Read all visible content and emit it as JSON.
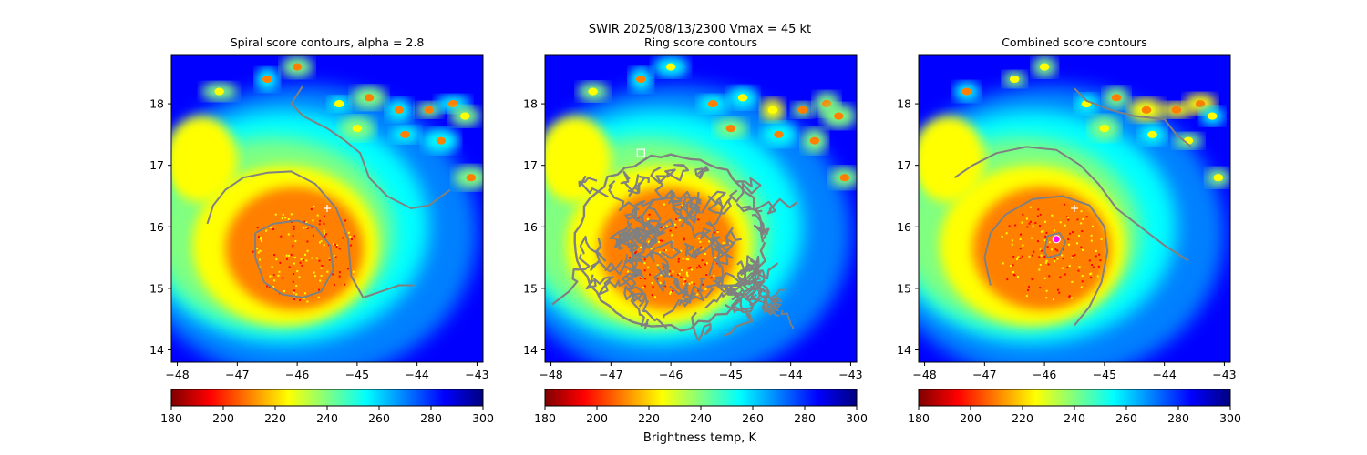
{
  "figure": {
    "suptitle_line1": "SWIR  2025/08/13/2300    Vmax = 45 kt",
    "colorbar_label": "Brightness temp, K"
  },
  "colormap": [
    "#800000",
    "#ff0000",
    "#ff8000",
    "#ffff00",
    "#80ff80",
    "#00ffff",
    "#0080ff",
    "#0000ff",
    "#000080"
  ],
  "chart_data": [
    {
      "type": "heatmap",
      "title": "Spiral score contours, alpha =  2.8",
      "xlim": [
        -48.1,
        -42.9
      ],
      "ylim": [
        13.8,
        18.8
      ],
      "xticks": [
        -48,
        -47,
        -46,
        -45,
        -44,
        -43
      ],
      "xtick_labels": [
        "−48",
        "−47",
        "−46",
        "−45",
        "−44",
        "−43"
      ],
      "yticks": [
        14,
        15,
        16,
        17,
        18
      ],
      "ytick_labels": [
        "14",
        "15",
        "16",
        "17",
        "18"
      ],
      "colorbar": {
        "range": [
          180,
          300
        ],
        "ticks": [
          180,
          200,
          220,
          240,
          260,
          280,
          300
        ],
        "tick_labels": [
          "180",
          "200",
          "220",
          "240",
          "260",
          "280",
          "300"
        ]
      },
      "storm_center": [
        -45.9,
        15.6
      ],
      "markers": [
        {
          "shape": "plus",
          "x": -45.5,
          "y": 16.3,
          "color": "#ffffff"
        }
      ],
      "contours": [
        {
          "points": [
            [
              -46.7,
              15.9
            ],
            [
              -46.4,
              16.05
            ],
            [
              -46.0,
              16.1
            ],
            [
              -45.7,
              16.0
            ],
            [
              -45.45,
              15.7
            ],
            [
              -45.4,
              15.3
            ],
            [
              -45.6,
              14.95
            ],
            [
              -45.9,
              14.85
            ],
            [
              -46.25,
              14.9
            ],
            [
              -46.55,
              15.1
            ],
            [
              -46.7,
              15.5
            ],
            [
              -46.7,
              15.9
            ]
          ]
        },
        {
          "points": [
            [
              -47.5,
              16.05
            ],
            [
              -47.4,
              16.35
            ],
            [
              -47.2,
              16.6
            ],
            [
              -46.9,
              16.8
            ],
            [
              -46.5,
              16.88
            ],
            [
              -46.1,
              16.9
            ],
            [
              -45.7,
              16.7
            ],
            [
              -45.35,
              16.3
            ],
            [
              -45.15,
              15.8
            ],
            [
              -45.1,
              15.2
            ],
            [
              -44.9,
              14.85
            ],
            [
              -44.6,
              14.95
            ],
            [
              -44.3,
              15.05
            ],
            [
              -44.05,
              15.05
            ]
          ]
        },
        {
          "points": [
            [
              -45.9,
              18.3
            ],
            [
              -46.1,
              18.0
            ],
            [
              -45.9,
              17.8
            ],
            [
              -45.5,
              17.6
            ],
            [
              -45.2,
              17.4
            ],
            [
              -44.95,
              17.2
            ],
            [
              -44.8,
              16.8
            ],
            [
              -44.5,
              16.5
            ],
            [
              -44.1,
              16.3
            ],
            [
              -43.8,
              16.35
            ],
            [
              -43.45,
              16.6
            ]
          ]
        }
      ]
    },
    {
      "type": "heatmap",
      "title": "Ring score contours",
      "xlim": [
        -48.1,
        -42.9
      ],
      "ylim": [
        13.8,
        18.8
      ],
      "xticks": [
        -48,
        -47,
        -46,
        -45,
        -44,
        -43
      ],
      "xtick_labels": [
        "−48",
        "−47",
        "−46",
        "−45",
        "−44",
        "−43"
      ],
      "yticks": [
        14,
        15,
        16,
        17,
        18
      ],
      "ytick_labels": [
        "14",
        "15",
        "16",
        "17",
        "18"
      ],
      "colorbar": {
        "range": [
          180,
          300
        ],
        "ticks": [
          180,
          200,
          220,
          240,
          260,
          280,
          300
        ],
        "tick_labels": [
          "180",
          "200",
          "220",
          "240",
          "260",
          "280",
          "300"
        ]
      },
      "storm_center": [
        -45.9,
        15.6
      ],
      "markers": [
        {
          "shape": "square",
          "x": -46.5,
          "y": 17.2,
          "color": "#ffffff"
        }
      ],
      "dense_contour_field": {
        "center": [
          -46.0,
          15.75
        ],
        "radius_x": 1.55,
        "radius_y": 1.4,
        "color": "#808080",
        "extra_lobe": [
          [
            -45.0,
            15.0
          ],
          [
            -44.0,
            14.7
          ]
        ]
      },
      "contours": []
    },
    {
      "type": "heatmap",
      "title": "Combined score contours",
      "xlim": [
        -48.1,
        -42.9
      ],
      "ylim": [
        13.8,
        18.8
      ],
      "xticks": [
        -48,
        -47,
        -46,
        -45,
        -44,
        -43
      ],
      "xtick_labels": [
        "−48",
        "−47",
        "−46",
        "−45",
        "−44",
        "−43"
      ],
      "yticks": [
        14,
        15,
        16,
        17,
        18
      ],
      "ytick_labels": [
        "14",
        "15",
        "16",
        "17",
        "18"
      ],
      "colorbar": {
        "range": [
          180,
          300
        ],
        "ticks": [
          180,
          200,
          220,
          240,
          260,
          280,
          300
        ],
        "tick_labels": [
          "180",
          "200",
          "220",
          "240",
          "260",
          "280",
          "300"
        ]
      },
      "storm_center": [
        -45.9,
        15.6
      ],
      "markers": [
        {
          "shape": "plus",
          "x": -45.5,
          "y": 16.3,
          "color": "#ffffff"
        },
        {
          "shape": "circle",
          "x": -45.8,
          "y": 15.8,
          "color": "#ff00ff"
        }
      ],
      "contours": [
        {
          "points": [
            [
              -46.0,
              15.6
            ],
            [
              -45.95,
              15.85
            ],
            [
              -45.75,
              15.9
            ],
            [
              -45.65,
              15.75
            ],
            [
              -45.75,
              15.55
            ],
            [
              -45.95,
              15.5
            ],
            [
              -46.0,
              15.6
            ]
          ]
        },
        {
          "points": [
            [
              -46.9,
              15.05
            ],
            [
              -47.0,
              15.5
            ],
            [
              -46.9,
              15.9
            ],
            [
              -46.65,
              16.2
            ],
            [
              -46.2,
              16.45
            ],
            [
              -45.7,
              16.5
            ],
            [
              -45.25,
              16.35
            ],
            [
              -45.0,
              16.0
            ],
            [
              -44.95,
              15.6
            ],
            [
              -45.05,
              15.1
            ],
            [
              -45.25,
              14.7
            ],
            [
              -45.5,
              14.4
            ]
          ]
        },
        {
          "points": [
            [
              -47.5,
              16.8
            ],
            [
              -47.2,
              17.0
            ],
            [
              -46.8,
              17.2
            ],
            [
              -46.3,
              17.3
            ],
            [
              -45.8,
              17.25
            ],
            [
              -45.4,
              17.0
            ],
            [
              -45.1,
              16.7
            ],
            [
              -44.8,
              16.3
            ],
            [
              -44.4,
              16.0
            ],
            [
              -44.0,
              15.7
            ],
            [
              -43.6,
              15.45
            ]
          ]
        },
        {
          "points": [
            [
              -45.5,
              18.25
            ],
            [
              -45.3,
              18.05
            ],
            [
              -44.9,
              17.9
            ],
            [
              -44.5,
              17.8
            ],
            [
              -44.0,
              17.75
            ],
            [
              -43.8,
              17.5
            ],
            [
              -43.55,
              17.3
            ]
          ]
        }
      ]
    }
  ]
}
